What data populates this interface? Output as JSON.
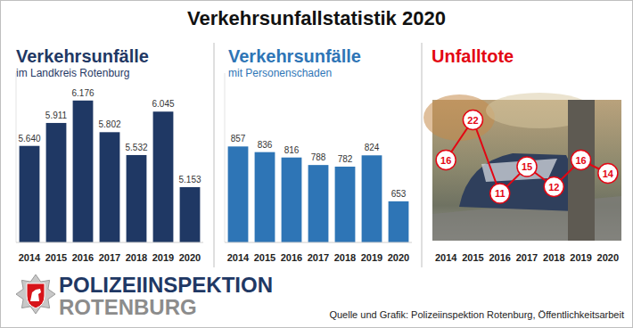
{
  "title": "Verkehrsunfallstatistik 2020",
  "chart_data": [
    {
      "type": "bar",
      "title": "Verkehrsunfälle",
      "subtitle": "im Landkreis Rotenburg",
      "categories": [
        "2014",
        "2015",
        "2016",
        "2017",
        "2018",
        "2019",
        "2020"
      ],
      "values": [
        5640,
        5911,
        6176,
        5802,
        5532,
        6045,
        5153
      ],
      "value_labels": [
        "5.640",
        "5.911",
        "6.176",
        "5.802",
        "5.532",
        "6.045",
        "5.153"
      ],
      "color": "#1f3864",
      "ylim": [
        4500,
        6500
      ],
      "data_labels": true,
      "tick_labels": "x"
    },
    {
      "type": "bar",
      "title": "Verkehrsunfälle",
      "subtitle": "mit Personenschaden",
      "categories": [
        "2014",
        "2015",
        "2016",
        "2017",
        "2018",
        "2019",
        "2020"
      ],
      "values": [
        857,
        836,
        816,
        788,
        782,
        824,
        653
      ],
      "color": "#2e75b6",
      "ylim": [
        500,
        1130
      ],
      "data_labels": true,
      "tick_labels": "x"
    },
    {
      "type": "line",
      "title": "Unfalltote",
      "categories": [
        "2014",
        "2015",
        "2016",
        "2017",
        "2018",
        "2019",
        "2020"
      ],
      "values": [
        16,
        22,
        11,
        15,
        12,
        16,
        14
      ],
      "color": "#e30613",
      "marker": "circle",
      "ylim": [
        5,
        25
      ],
      "data_labels": true,
      "tick_labels": "x"
    }
  ],
  "logo": {
    "line1": "POLIZEIINSPEKTION",
    "line2": "ROTENBURG"
  },
  "source": "Quelle und Grafik: Polizeiinspektion Rotenburg, Öffentlichkeitsarbeit"
}
